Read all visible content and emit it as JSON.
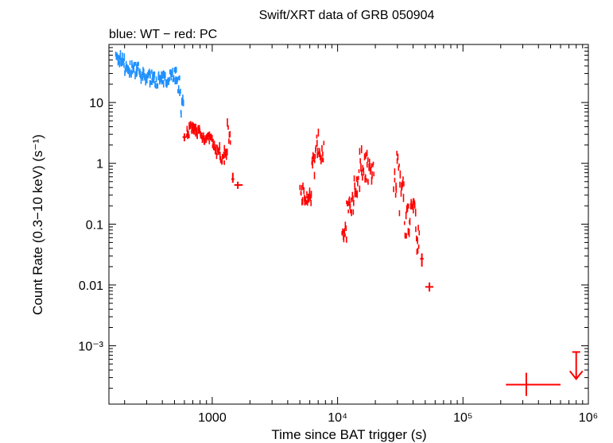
{
  "chart_data": {
    "type": "scatter",
    "title": "Swift/XRT data of GRB 050904",
    "subtitle": "blue: WT − red: PC",
    "xlabel": "Time since BAT trigger (s)",
    "ylabel": "Count Rate (0.3−10 keV) (s⁻¹)",
    "x_scale": "log",
    "y_scale": "log",
    "xlim": [
      150,
      1000000
    ],
    "ylim": [
      0.00011,
      90
    ],
    "x_ticks": [
      {
        "value": 1000,
        "label": "1000"
      },
      {
        "value": 10000,
        "label": "10⁴"
      },
      {
        "value": 100000,
        "label": "10⁵"
      },
      {
        "value": 1000000,
        "label": "10⁶"
      }
    ],
    "y_ticks": [
      {
        "value": 10,
        "label": "10"
      },
      {
        "value": 1,
        "label": "1"
      },
      {
        "value": 0.1,
        "label": "0.1"
      },
      {
        "value": 0.01,
        "label": "0.01"
      },
      {
        "value": 0.001,
        "label": "10⁻³"
      }
    ],
    "grid": false,
    "series": [
      {
        "name": "WT",
        "color": "#1e90ff",
        "bands": [
          {
            "x": [
              170,
              200
            ],
            "y": [
              40,
              65
            ]
          },
          {
            "x": [
              200,
              260
            ],
            "y": [
              28,
              45
            ]
          },
          {
            "x": [
              260,
              340
            ],
            "y": [
              20,
              33
            ]
          },
          {
            "x": [
              340,
              440
            ],
            "y": [
              18,
              30
            ]
          },
          {
            "x": [
              440,
              520
            ],
            "y": [
              22,
              38
            ]
          },
          {
            "x": [
              520,
              560
            ],
            "y": [
              14,
              26
            ]
          },
          {
            "x": [
              560,
              590
            ],
            "y": [
              6,
              12
            ]
          }
        ]
      },
      {
        "name": "PC",
        "color": "#ff0000",
        "bands": [
          {
            "x": [
              620,
              700
            ],
            "y": [
              2.6,
              4.5
            ]
          },
          {
            "x": [
              700,
              800
            ],
            "y": [
              2.8,
              4.2
            ]
          },
          {
            "x": [
              800,
              900
            ],
            "y": [
              2.2,
              3.4
            ]
          },
          {
            "x": [
              900,
              1000
            ],
            "y": [
              2.2,
              3.0
            ]
          },
          {
            "x": [
              1000,
              1080
            ],
            "y": [
              1.4,
              2.2
            ]
          },
          {
            "x": [
              1080,
              1150
            ],
            "y": [
              1.3,
              2.0
            ]
          },
          {
            "x": [
              1150,
              1250
            ],
            "y": [
              1.0,
              1.4
            ]
          },
          {
            "x": [
              1250,
              1320
            ],
            "y": [
              1.1,
              1.8
            ]
          },
          {
            "x": [
              1320,
              1400
            ],
            "y": [
              2.0,
              5.0
            ]
          },
          {
            "x": [
              5000,
              5600
            ],
            "y": [
              0.22,
              0.45
            ]
          },
          {
            "x": [
              5600,
              6200
            ],
            "y": [
              0.2,
              0.35
            ]
          },
          {
            "x": [
              6200,
              6600
            ],
            "y": [
              0.6,
              1.4
            ]
          },
          {
            "x": [
              6600,
              7200
            ],
            "y": [
              1.2,
              3.3
            ]
          },
          {
            "x": [
              7200,
              7800
            ],
            "y": [
              1.1,
              2.2
            ]
          },
          {
            "x": [
              10800,
              11800
            ],
            "y": [
              0.04,
              0.1
            ]
          },
          {
            "x": [
              11800,
              13500
            ],
            "y": [
              0.15,
              0.32
            ]
          },
          {
            "x": [
              13500,
              15000
            ],
            "y": [
              0.3,
              0.8
            ]
          },
          {
            "x": [
              15000,
              17500
            ],
            "y": [
              0.5,
              1.8
            ]
          },
          {
            "x": [
              17500,
              19500
            ],
            "y": [
              0.45,
              1.2
            ]
          },
          {
            "x": [
              28000,
              31000
            ],
            "y": [
              0.25,
              1.5
            ]
          },
          {
            "x": [
              31000,
              34000
            ],
            "y": [
              0.14,
              0.7
            ]
          },
          {
            "x": [
              34000,
              38000
            ],
            "y": [
              0.06,
              0.2
            ]
          },
          {
            "x": [
              38000,
              42000
            ],
            "y": [
              0.14,
              0.35
            ]
          },
          {
            "x": [
              42000,
              45000
            ],
            "y": [
              0.035,
              0.09
            ]
          }
        ],
        "points": [
          {
            "x": 600,
            "y": 2.7,
            "xerr": [
              580,
              620
            ],
            "yerr": [
              2.3,
              3.1
            ]
          },
          {
            "x": 1460,
            "y": 0.55,
            "xerr": [
              1420,
              1500
            ],
            "yerr": [
              0.48,
              0.7
            ]
          },
          {
            "x": 1600,
            "y": 0.44,
            "xerr": [
              1500,
              1750
            ],
            "yerr": [
              0.38,
              0.5
            ]
          },
          {
            "x": 47000,
            "y": 0.027,
            "xerr": [
              45500,
              48500
            ],
            "yerr": [
              0.02,
              0.033
            ]
          },
          {
            "x": 54000,
            "y": 0.0093,
            "xerr": [
              50000,
              58000
            ],
            "yerr": [
              0.0078,
              0.011
            ]
          },
          {
            "x": 320000,
            "y": 0.00023,
            "xerr": [
              220000,
              600000
            ],
            "yerr": [
              0.00015,
              0.00036
            ]
          }
        ],
        "upper_limits": [
          {
            "x": 800000,
            "y": 0.00079
          }
        ]
      }
    ]
  }
}
